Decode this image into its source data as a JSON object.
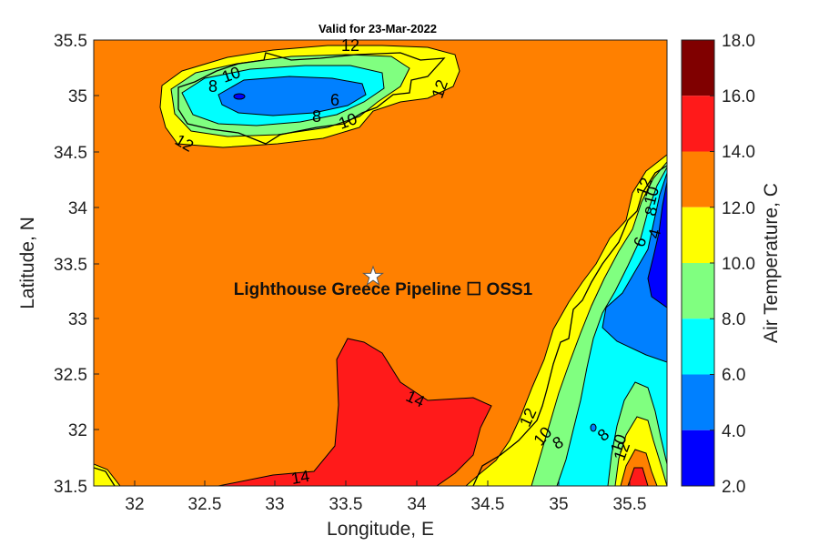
{
  "title": "Valid for 23-Mar-2022",
  "x_axis": {
    "label": "Longitude, E",
    "ticks": [
      "32",
      "32.5",
      "33",
      "33.5",
      "34",
      "34.5",
      "35",
      "35.5"
    ]
  },
  "y_axis": {
    "label": "Latitude, N",
    "ticks": [
      "35.5",
      "35",
      "34.5",
      "34",
      "33.5",
      "33",
      "32.5",
      "32",
      "31.5"
    ]
  },
  "site": {
    "name": "Lighthouse Greece Pipeline ☐ OSS1",
    "longitude": 33.7,
    "latitude": 33.38,
    "marker": "white-star"
  },
  "colorbar": {
    "label": "Air Temperature, C",
    "ticks": [
      "18.0",
      "16.0",
      "14.0",
      "12.0",
      "10.0",
      "8.0",
      "6.0",
      "4.0",
      "2.0"
    ],
    "bands": [
      {
        "range": "16-18",
        "color": "#800000"
      },
      {
        "range": "14-16",
        "color": "#ff1a1a"
      },
      {
        "range": "12-14",
        "color": "#ff8000"
      },
      {
        "range": "10-12",
        "color": "#ffff00"
      },
      {
        "range": "8-10",
        "color": "#80ff80"
      },
      {
        "range": "6-8",
        "color": "#00ffff"
      },
      {
        "range": "4-6",
        "color": "#0080ff"
      },
      {
        "range": "2-4",
        "color": "#0000ff"
      }
    ]
  },
  "contour_labels": [
    {
      "text": "12",
      "id": "cyprus-north-12"
    },
    {
      "text": "10",
      "id": "cyprus-west-10"
    },
    {
      "text": "8",
      "id": "cyprus-west-8"
    },
    {
      "text": "6",
      "id": "cyprus-center-6"
    },
    {
      "text": "8",
      "id": "cyprus-south-8"
    },
    {
      "text": "10",
      "id": "cyprus-south-10"
    },
    {
      "text": "12",
      "id": "cyprus-east-12"
    },
    {
      "text": "12",
      "id": "cyprus-southwest-12"
    },
    {
      "text": "14",
      "id": "sea-14-upper"
    },
    {
      "text": "14",
      "id": "sea-14-lower"
    },
    {
      "text": "12",
      "id": "coast-12"
    },
    {
      "text": "10",
      "id": "coast-10"
    },
    {
      "text": "8",
      "id": "coast-8"
    },
    {
      "text": "8",
      "id": "inland-8"
    },
    {
      "text": "10",
      "id": "inland-10"
    },
    {
      "text": "12",
      "id": "inland-12"
    },
    {
      "text": "12",
      "id": "northeast-12"
    },
    {
      "text": "10",
      "id": "northeast-10"
    },
    {
      "text": "8",
      "id": "northeast-8"
    },
    {
      "text": "6",
      "id": "northeast-6"
    },
    {
      "text": "4",
      "id": "northeast-4"
    }
  ]
}
